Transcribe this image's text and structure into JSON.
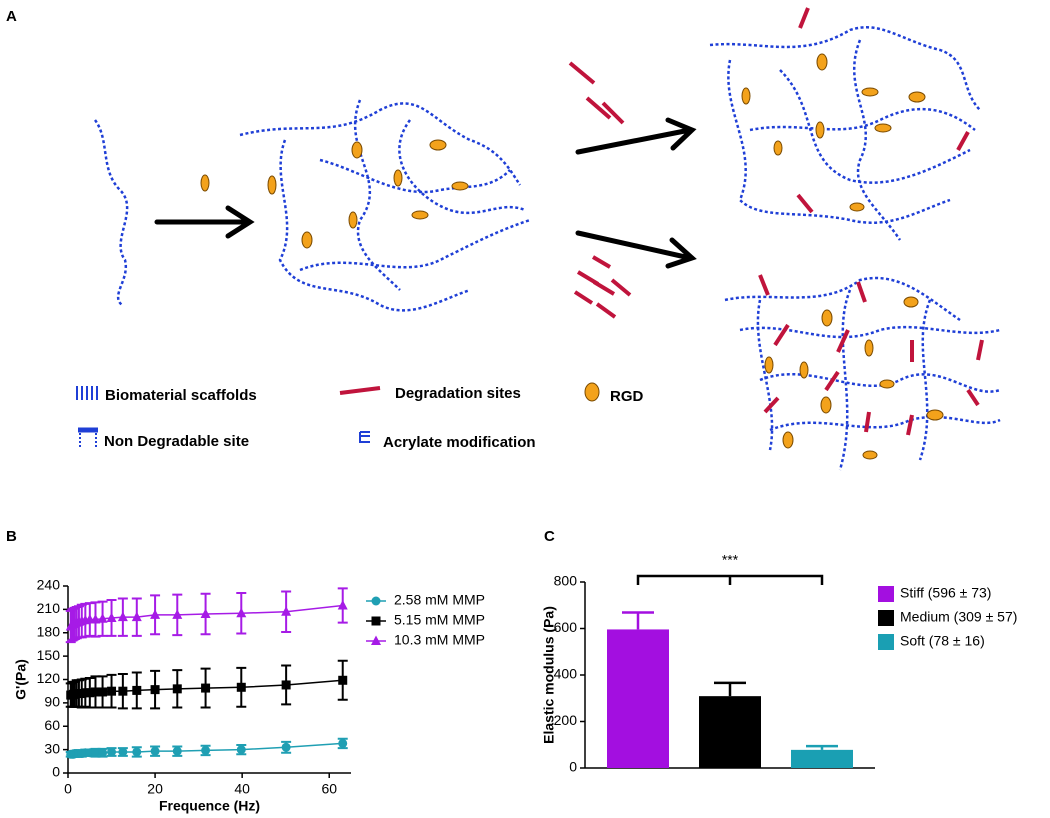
{
  "diagram": {
    "panel_label": "A",
    "legend": {
      "scaffolds": "Biomaterial scaffolds",
      "degradation": "Degradation sites",
      "rgd": "RGD",
      "non_degradable": "Non Degradable site",
      "acrylate": "Acrylate modification"
    }
  },
  "chart_data": [
    {
      "type": "line",
      "panel_label": "B",
      "x_label": "Frequence (Hz)",
      "y_label": "G'(Pa)",
      "x": [
        0.63,
        1,
        1.26,
        1.58,
        2,
        2.51,
        3.16,
        3.98,
        5.01,
        6.31,
        7.94,
        10,
        12.6,
        15.8,
        20,
        25.1,
        31.6,
        39.8,
        50.1,
        63.1
      ],
      "xlim": [
        0,
        65
      ],
      "xticks": [
        0,
        20,
        40,
        60
      ],
      "ylim": [
        0,
        240
      ],
      "yticks": [
        0,
        30,
        60,
        90,
        120,
        150,
        180,
        210,
        240
      ],
      "series": [
        {
          "name": "2.58 mM MMP",
          "color": "#1f9fb3",
          "marker": "circle",
          "values": [
            24,
            24,
            24,
            25,
            25,
            25,
            25,
            26,
            26,
            26,
            26,
            27,
            27,
            27,
            28,
            28,
            29,
            30,
            33,
            38
          ],
          "errors": [
            3,
            3,
            3,
            3,
            4,
            4,
            4,
            4,
            4,
            5,
            5,
            5,
            5,
            6,
            6,
            6,
            6,
            6,
            7,
            6
          ]
        },
        {
          "name": "5.15 mM MMP",
          "color": "#000000",
          "marker": "square",
          "values": [
            100,
            100,
            101,
            101,
            102,
            102,
            102,
            103,
            103,
            104,
            104,
            105,
            105,
            106,
            107,
            108,
            109,
            110,
            113,
            119
          ],
          "errors": [
            15,
            15,
            16,
            16,
            17,
            17,
            18,
            18,
            19,
            20,
            20,
            21,
            22,
            23,
            24,
            24,
            25,
            25,
            25,
            25
          ]
        },
        {
          "name": "10.3 mM MMP",
          "color": "#a61be6",
          "marker": "triangle",
          "values": [
            188,
            190,
            191,
            192,
            193,
            194,
            195,
            196,
            197,
            197,
            198,
            199,
            200,
            200,
            203,
            203,
            204,
            205,
            207,
            215
          ],
          "errors": [
            20,
            20,
            20,
            20,
            20,
            20,
            21,
            21,
            21,
            22,
            22,
            23,
            24,
            24,
            25,
            26,
            26,
            26,
            26,
            22
          ]
        }
      ]
    },
    {
      "type": "bar",
      "panel_label": "C",
      "y_label": "Elastic modulus  (Pa)",
      "annotation": "***",
      "ylim": [
        0,
        800
      ],
      "yticks": [
        0,
        200,
        400,
        600,
        800
      ],
      "series": [
        {
          "name": "Stiff (596 ± 73)",
          "color": "#a30fe0",
          "values": [
            596
          ],
          "errors": [
            73
          ]
        },
        {
          "name": "Medium (309 ± 57)",
          "color": "#000000",
          "values": [
            309
          ],
          "errors": [
            57
          ]
        },
        {
          "name": "Soft (78 ± 16)",
          "color": "#1a9fb3",
          "values": [
            78
          ],
          "errors": [
            16
          ]
        }
      ]
    }
  ]
}
